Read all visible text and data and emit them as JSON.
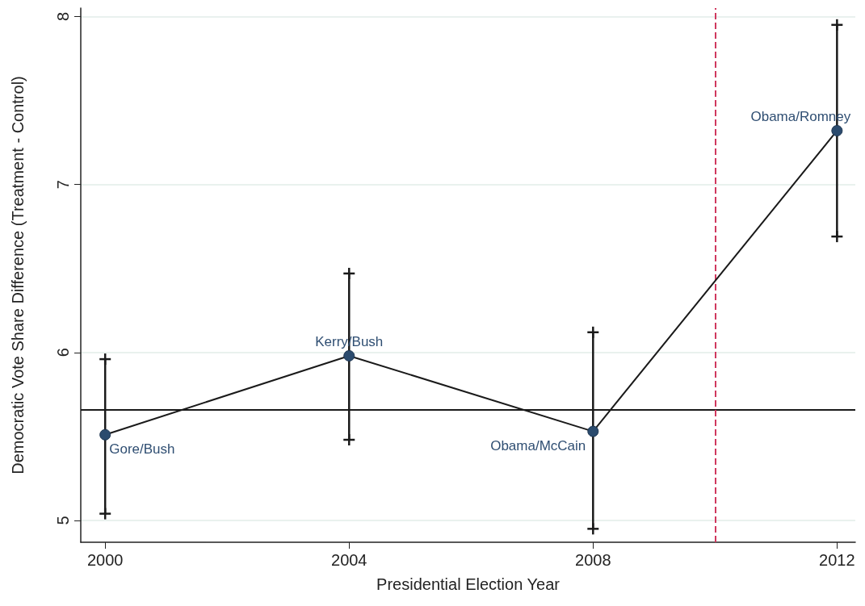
{
  "chart_data": {
    "type": "line",
    "xlabel": "Presidential Election Year",
    "ylabel": "Democratic Vote Share Difference (Treatment - Control)",
    "x": [
      2000,
      2004,
      2008,
      2012
    ],
    "series": [
      {
        "color": "#1a1a1a",
        "values": [
          5.51,
          5.98,
          5.53,
          7.32
        ],
        "errors": [
          [
            5.04,
            5.96
          ],
          [
            5.48,
            6.47
          ],
          [
            4.95,
            6.12
          ],
          [
            6.69,
            7.95
          ]
        ]
      }
    ],
    "xlim": [
      1999.6,
      2012.3
    ],
    "xticks": [
      2000,
      2004,
      2008,
      2012
    ],
    "ylim": [
      4.87,
      8.05
    ],
    "yticks": [
      5,
      6,
      7,
      8
    ],
    "grid": "y",
    "marker": "circle",
    "line_style": "solid",
    "ref_lines": [
      {
        "axis": "y",
        "value": 5.66,
        "color": "#1a1a1a",
        "line_style": "solid"
      },
      {
        "axis": "x",
        "value": 2010,
        "color": "#d0385e",
        "line_style": "dashed"
      }
    ],
    "annotations": [
      {
        "text": "Gore/Bush",
        "x": 2000,
        "y": 5.51
      },
      {
        "text": "Kerry/Bush",
        "x": 2004,
        "y": 5.98
      },
      {
        "text": "Obama/McCain",
        "x": 2008,
        "y": 5.53
      },
      {
        "text": "Obama/Romney",
        "x": 2012,
        "y": 7.32
      }
    ]
  }
}
